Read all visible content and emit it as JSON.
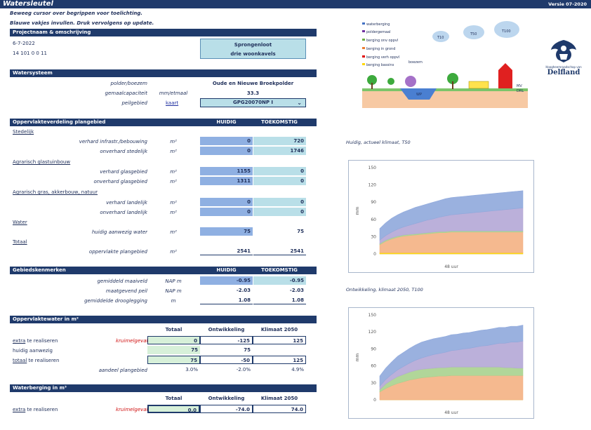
{
  "header": {
    "title": "Watersleutel",
    "version": "Versie 07-2020"
  },
  "hints": [
    "Beweeg cursor over begrippen voor toelichting.",
    "Blauwe vakjes invullen. Druk vervolgens op update."
  ],
  "project": {
    "section": "Projectnaam & omschrijving",
    "date": "6-7-2022",
    "code": "14 101 0 0 11",
    "name1": "Sprongenloot",
    "name2": "drie woonkavels"
  },
  "watersysteem": {
    "section": "Watersysteem",
    "rows": [
      {
        "label": "polder/boezem",
        "unit": "",
        "value": "Oude en Nieuwe Broekpolder"
      },
      {
        "label": "gemaalcapaciteit",
        "unit": "mm/etmaal",
        "value": "33.3"
      },
      {
        "label": "peilgebied",
        "unit": "kaart",
        "value": "GPG20070NP I"
      }
    ]
  },
  "oppervlak": {
    "section": "Oppervlakteverdeling plangebied",
    "col1": "HUIDIG",
    "col2": "TOEKOMSTIG",
    "cat_stedelijk": "Stedelijk",
    "cat_agrarisch_glas": "Agrarisch glastuinbouw",
    "cat_agrarisch_gras": "Agrarisch gras, akkerbouw, natuur",
    "cat_water": "Water",
    "cat_totaal": "Totaal",
    "rows": [
      {
        "label": "verhard infrastr./bebouwing",
        "unit": "m²",
        "h": "0",
        "t": "720"
      },
      {
        "label": "onverhard stedelijk",
        "unit": "m²",
        "h": "0",
        "t": "1746"
      },
      {
        "label": "verhard glasgebied",
        "unit": "m²",
        "h": "1155",
        "t": "0"
      },
      {
        "label": "onverhard glasgebied",
        "unit": "m²",
        "h": "1311",
        "t": "0"
      },
      {
        "label": "verhard landelijk",
        "unit": "m²",
        "h": "0",
        "t": "0"
      },
      {
        "label": "onverhard landelijk",
        "unit": "m²",
        "h": "0",
        "t": "0"
      },
      {
        "label": "huidig aanwezig water",
        "unit": "m²",
        "h": "75",
        "t": "75"
      },
      {
        "label": "oppervlakte plangebied",
        "unit": "m²",
        "h": "2541",
        "t": "2541"
      }
    ]
  },
  "gebied": {
    "section": "Gebiedskenmerken",
    "col1": "HUIDIG",
    "col2": "TOEKOMSTIG",
    "rows": [
      {
        "label": "gemiddeld maaiveld",
        "unit": "NAP m",
        "h": "-0.95",
        "t": "-0.95"
      },
      {
        "label": "maatgevend peil",
        "unit": "NAP m",
        "h": "-2.03",
        "t": "-2.03"
      },
      {
        "label": "gemiddelde drooglegging",
        "unit": "m",
        "h": "1.08",
        "t": "1.08"
      }
    ]
  },
  "oppwater": {
    "section": "Oppervlaktewater in m²",
    "cols": [
      "Totaal",
      "Ontwikkeling",
      "Klimaat 2050"
    ],
    "flag": "kruimelgeval",
    "row1_a": "extra",
    "row1_b": " te realiseren",
    "row2": "huidig aanwezig",
    "row3_a": "totaal",
    "row3_b": " te realiseren",
    "row4": "aandeel plangebied",
    "values": [
      [
        "0",
        "-125",
        "125"
      ],
      [
        "75",
        "75",
        ""
      ],
      [
        "75",
        "-50",
        "125"
      ],
      [
        "3.0%",
        "-2.0%",
        "4.9%"
      ]
    ]
  },
  "waterberging": {
    "section": "Waterberging in m³",
    "cols": [
      "Totaal",
      "Ontwikkeling",
      "Klimaat 2050"
    ],
    "flag": "kruimelgeval",
    "row1_a": "extra",
    "row1_b": " te realiseren",
    "values": [
      "0.0",
      "-74.0",
      "74.0"
    ]
  },
  "diagram": {
    "legend": [
      "waterberging",
      "poldergemaal",
      "berging onv oppvl",
      "berging in grond",
      "berging verh oppvl",
      "berging bassins"
    ],
    "legend_colors": [
      "#4472c4",
      "#7030a0",
      "#70ad47",
      "#ed7d31",
      "#e00000",
      "#ffd700"
    ],
    "clouds": [
      "T10",
      "T50",
      "T100"
    ],
    "labels": {
      "boezem": "boezem",
      "wp": "WP",
      "mv": "MV",
      "drl": "DRL"
    }
  },
  "logo": {
    "top": "Hoogheemraadschap van",
    "name": "Delfland"
  },
  "chart_data": [
    {
      "type": "area",
      "title": "Huidig, actueel klimaat, T50",
      "xlabel": "48 uur",
      "ylabel": "mm",
      "ylim": [
        0,
        150
      ],
      "yticks": [
        "0",
        "30",
        "60",
        "90",
        "120",
        "150"
      ],
      "x": [
        0,
        2,
        4,
        6,
        8,
        10,
        12,
        14,
        16,
        18,
        20,
        22,
        24,
        26,
        28,
        30,
        32,
        34,
        36,
        38,
        40,
        42,
        44,
        46,
        48
      ],
      "series": [
        {
          "name": "berging bassins",
          "color": "#ffd700",
          "values": [
            2,
            2,
            2,
            2,
            2,
            2,
            2,
            2,
            2,
            2,
            2,
            2,
            2,
            2,
            2,
            2,
            2,
            2,
            2,
            2,
            2,
            2,
            2,
            2,
            2
          ]
        },
        {
          "name": "berging in grond",
          "color": "#f4b183",
          "values": [
            14,
            20,
            24,
            27,
            29,
            30,
            31,
            32,
            33,
            34,
            35,
            35,
            36,
            36,
            36,
            36,
            36,
            36,
            36,
            36,
            36,
            36,
            36,
            36,
            36
          ]
        },
        {
          "name": "berging onv oppvl",
          "color": "#a9d18e",
          "values": [
            2,
            2,
            2,
            2,
            2,
            2,
            2,
            2,
            2,
            2,
            2,
            2,
            2,
            2,
            2,
            2,
            2,
            2,
            2,
            2,
            2,
            2,
            2,
            2,
            2
          ]
        },
        {
          "name": "poldergemaal",
          "color": "#b4a7d6",
          "values": [
            6,
            8,
            10,
            12,
            14,
            16,
            18,
            20,
            22,
            23,
            25,
            27,
            28,
            29,
            30,
            31,
            32,
            33,
            34,
            35,
            36,
            37,
            38,
            39,
            40
          ]
        },
        {
          "name": "waterberging",
          "color": "#8fa9dc",
          "values": [
            20,
            22,
            24,
            25,
            26,
            27,
            28,
            28,
            28,
            29,
            29,
            30,
            30,
            30,
            30,
            30,
            30,
            30,
            30,
            30,
            30,
            30,
            30,
            30,
            30
          ]
        }
      ]
    },
    {
      "type": "area",
      "title": "Ontwikkeling, klimaat 2050, T100",
      "xlabel": "48 uur",
      "ylabel": "mm",
      "ylim": [
        0,
        150
      ],
      "yticks": [
        "0",
        "30",
        "60",
        "90",
        "120",
        "150"
      ],
      "x": [
        0,
        2,
        4,
        6,
        8,
        10,
        12,
        14,
        16,
        18,
        20,
        22,
        24,
        26,
        28,
        30,
        32,
        34,
        36,
        38,
        40,
        42,
        44,
        46,
        48
      ],
      "series": [
        {
          "name": "berging bassins",
          "color": "#ffd700",
          "values": [
            0,
            0,
            0,
            0,
            0,
            0,
            0,
            0,
            0,
            0,
            0,
            0,
            0,
            0,
            0,
            0,
            0,
            0,
            0,
            0,
            0,
            0,
            0,
            0,
            0
          ]
        },
        {
          "name": "berging in grond",
          "color": "#f4b183",
          "values": [
            14,
            20,
            25,
            29,
            32,
            35,
            37,
            39,
            40,
            41,
            42,
            42,
            43,
            43,
            43,
            43,
            43,
            43,
            43,
            43,
            43,
            43,
            43,
            43,
            43
          ]
        },
        {
          "name": "berging onv oppvl",
          "color": "#a9d18e",
          "values": [
            4,
            8,
            10,
            12,
            13,
            14,
            15,
            15,
            15,
            15,
            15,
            15,
            15,
            15,
            15,
            15,
            15,
            15,
            15,
            15,
            15,
            14,
            14,
            13,
            13
          ]
        },
        {
          "name": "poldergemaal",
          "color": "#b4a7d6",
          "values": [
            6,
            8,
            10,
            12,
            14,
            16,
            18,
            20,
            22,
            24,
            25,
            27,
            29,
            30,
            32,
            33,
            35,
            37,
            38,
            40,
            42,
            43,
            45,
            46,
            48
          ]
        },
        {
          "name": "waterberging",
          "color": "#8fa9dc",
          "values": [
            18,
            20,
            22,
            24,
            25,
            26,
            27,
            28,
            28,
            28,
            28,
            28,
            28,
            28,
            28,
            28,
            28,
            28,
            28,
            28,
            28,
            28,
            28,
            28,
            28
          ]
        }
      ]
    }
  ]
}
